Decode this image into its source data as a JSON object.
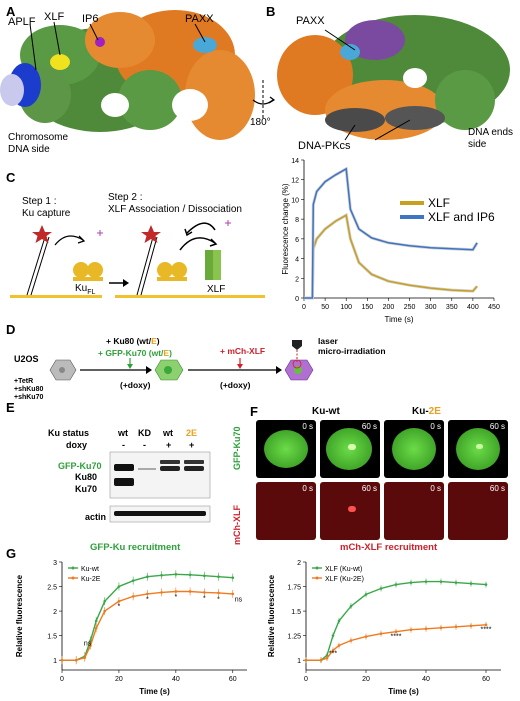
{
  "panels": {
    "A": "A",
    "B": "B",
    "C": "C",
    "D": "D",
    "E": "E",
    "F": "F",
    "G": "G"
  },
  "panelA": {
    "aplf": "APLF",
    "xlf": "XLF",
    "ip6": "IP6",
    "paxx": "PAXX",
    "dna_side": "Chromosome DNA side"
  },
  "panelB": {
    "paxx": "PAXX",
    "dnapkcs": "DNA-PKcs",
    "ends_side": "DNA ends side",
    "rotation": "180°"
  },
  "panelC": {
    "step1": "Step 1 :",
    "step1b": "Ku capture",
    "step2": "Step 2 :",
    "step2b": "XLF Association / Dissociation",
    "ku_fl": "Ku",
    "ku_fl_sub": "FL",
    "xlf_label": "XLF",
    "colors": {
      "xlf": "#c8a020",
      "xlf_ip6": "#3e74c4",
      "fit": "#bfbfbf"
    }
  },
  "chart_data": [
    {
      "type": "line",
      "ylabel": "Fluorescence change (%)",
      "xlabel": "Time (s)",
      "xlim": [
        0,
        450
      ],
      "ylim": [
        0,
        14
      ],
      "x_ticks": [
        0,
        50,
        100,
        150,
        200,
        250,
        300,
        350,
        400,
        450
      ],
      "y_ticks": [
        0,
        2,
        4,
        6,
        8,
        10,
        12,
        14
      ],
      "legend_position": "top-right",
      "series": [
        {
          "name": "XLF",
          "color": "#c8a020",
          "x": [
            0,
            20,
            22,
            30,
            50,
            75,
            100,
            110,
            130,
            160,
            200,
            250,
            300,
            350,
            400,
            410
          ],
          "y": [
            0,
            0,
            5.0,
            6.0,
            7.0,
            7.8,
            8.4,
            6.0,
            3.6,
            2.4,
            1.7,
            1.3,
            1.0,
            0.8,
            0.7,
            1.2
          ]
        },
        {
          "name": "XLF and IP6",
          "color": "#3e74c4",
          "x": [
            0,
            20,
            22,
            30,
            50,
            75,
            100,
            110,
            130,
            160,
            200,
            250,
            300,
            350,
            400,
            410
          ],
          "y": [
            0,
            0,
            9.5,
            10.8,
            11.8,
            12.5,
            13.1,
            9.0,
            7.0,
            6.1,
            5.6,
            5.3,
            5.1,
            5.0,
            4.9,
            5.6
          ]
        }
      ]
    },
    {
      "type": "line",
      "title": "GFP-Ku recruitment",
      "ylabel": "Relative fluorescence",
      "xlabel": "Time (s)",
      "xlim": [
        0,
        65
      ],
      "ylim": [
        0.8,
        3.0
      ],
      "x_ticks": [
        0,
        20,
        40,
        60
      ],
      "y_ticks": [
        1,
        1.5,
        2,
        2.5,
        3
      ],
      "legend_position": "top-left",
      "series": [
        {
          "name": "Ku-wt",
          "color": "#3aa84a",
          "x": [
            0,
            5,
            8,
            10,
            12,
            15,
            20,
            25,
            30,
            35,
            40,
            45,
            50,
            55,
            60
          ],
          "y": [
            1,
            1,
            1.08,
            1.4,
            1.8,
            2.2,
            2.5,
            2.62,
            2.7,
            2.73,
            2.75,
            2.74,
            2.72,
            2.7,
            2.68
          ]
        },
        {
          "name": "Ku-2E",
          "color": "#f07a20",
          "x": [
            0,
            5,
            8,
            10,
            12,
            15,
            20,
            25,
            30,
            35,
            40,
            45,
            50,
            55,
            60
          ],
          "y": [
            1,
            1,
            1.05,
            1.3,
            1.65,
            2.0,
            2.2,
            2.3,
            2.35,
            2.38,
            2.4,
            2.4,
            2.38,
            2.37,
            2.35
          ]
        }
      ],
      "annotations": [
        "ns",
        "*",
        "*",
        "*",
        "*",
        "*",
        "ns"
      ]
    },
    {
      "type": "line",
      "title": "mCh-XLF recruitment",
      "ylabel": "Relative fluorescence",
      "xlabel": "Time (s)",
      "xlim": [
        0,
        65
      ],
      "ylim": [
        0.9,
        2.0
      ],
      "x_ticks": [
        0,
        20,
        40,
        60
      ],
      "y_ticks": [
        1,
        1.25,
        1.5,
        1.75,
        2
      ],
      "legend_position": "top-left",
      "series": [
        {
          "name": "XLF (Ku-wt)",
          "color": "#3aa84a",
          "x": [
            0,
            5,
            7,
            9,
            11,
            15,
            20,
            25,
            30,
            35,
            40,
            45,
            50,
            55,
            60
          ],
          "y": [
            1,
            1,
            1.05,
            1.25,
            1.4,
            1.55,
            1.67,
            1.73,
            1.77,
            1.79,
            1.8,
            1.8,
            1.79,
            1.78,
            1.77
          ]
        },
        {
          "name": "XLF (Ku-2E)",
          "color": "#f07a20",
          "x": [
            0,
            5,
            7,
            9,
            11,
            15,
            20,
            25,
            30,
            35,
            40,
            45,
            50,
            55,
            60
          ],
          "y": [
            1,
            1,
            1.02,
            1.1,
            1.15,
            1.2,
            1.24,
            1.27,
            1.29,
            1.31,
            1.32,
            1.33,
            1.34,
            1.35,
            1.36
          ]
        }
      ],
      "annotations": [
        "***",
        "****",
        "****"
      ]
    }
  ],
  "panelD": {
    "cell_line": "U2OS",
    "tetr": "+TetR",
    "shku80": "+shKu80",
    "shku70": "+shKu70",
    "ku80_pre": "+ Ku80 (wt/",
    "ku80_e": "E",
    "ku80_post": ")",
    "gfp_pre": "+ GFP-Ku70 (wt/",
    "gfp_e": "E",
    "gfp_post": ")",
    "doxy1": "(+doxy)",
    "mch": "+ mCh-XLF",
    "doxy2": "(+doxy)",
    "laser": "laser",
    "micro": "micro-irradiation"
  },
  "panelE": {
    "ku_status": "Ku status",
    "doxy": "doxy",
    "lanes": [
      "wt",
      "KD",
      "wt",
      "2E"
    ],
    "doxy_signs": [
      "-",
      "-",
      "+",
      "+"
    ],
    "bands": [
      "GFP-Ku70",
      "Ku80",
      "Ku70"
    ],
    "actin": "actin"
  },
  "panelF": {
    "col_wt": "Ku-wt",
    "col_2e_pre": "Ku-",
    "col_2e": "2E",
    "row_top": "GFP-Ku70",
    "row_bottom": "mCh-XLF",
    "times": [
      "0 s",
      "60 s",
      "0 s",
      "60 s",
      "0 s",
      "60 s",
      "0 s",
      "60 s"
    ]
  }
}
